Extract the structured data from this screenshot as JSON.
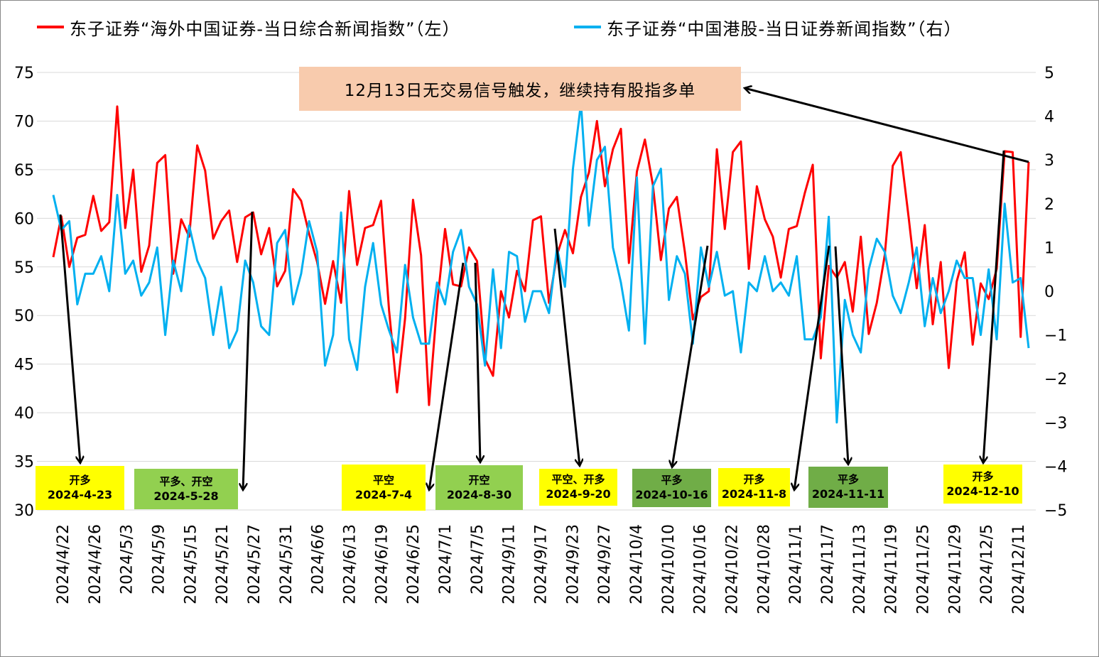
{
  "legend": {
    "left_label": "东子证券“海外中国证券-当日综合新闻指数”（左）",
    "right_label": "东子证券“中国港股-当日证券新闻指数”（右）"
  },
  "callout": {
    "text": "12月13日无交易信号触发，继续持有股指多单"
  },
  "signals": [
    {
      "action": "开多",
      "date": "2024-4-23",
      "bg": "#ffff00"
    },
    {
      "action": "平多、开空",
      "date": "2024-5-28",
      "bg": "#92d050"
    },
    {
      "action": "平空",
      "date": "2024-7-4",
      "bg": "#ffff00"
    },
    {
      "action": "开空",
      "date": "2024-8-30",
      "bg": "#92d050"
    },
    {
      "action": "平空、开多",
      "date": "2024-9-20",
      "bg": "#ffff00"
    },
    {
      "action": "平多",
      "date": "2024-10-16",
      "bg": "#70ad47"
    },
    {
      "action": "开多",
      "date": "2024-11-8",
      "bg": "#ffff00"
    },
    {
      "action": "平多",
      "date": "2024-11-11",
      "bg": "#70ad47"
    },
    {
      "action": "开多",
      "date": "2024-12-10",
      "bg": "#ffff00"
    }
  ],
  "chart_data": {
    "type": "line",
    "x_tick_labels": [
      "2024/4/22",
      "2024/4/26",
      "2024/5/3",
      "2024/5/9",
      "2024/5/15",
      "2024/5/21",
      "2024/5/27",
      "2024/5/31",
      "2024/6/6",
      "2024/6/13",
      "2024/6/19",
      "2024/6/25",
      "2024/7/1",
      "2024/7/5",
      "2024/9/11",
      "2024/9/17",
      "2024/9/23",
      "2024/9/27",
      "2024/10/4",
      "2024/10/10",
      "2024/10/16",
      "2024/10/22",
      "2024/10/28",
      "2024/11/1",
      "2024/11/7",
      "2024/11/13",
      "2024/11/19",
      "2024/11/25",
      "2024/11/29",
      "2024/12/5",
      "2024/12/11"
    ],
    "left_axis": {
      "min": 30,
      "max": 75,
      "ticks": [
        30,
        35,
        40,
        45,
        50,
        55,
        60,
        65,
        70,
        75
      ]
    },
    "right_axis": {
      "min": -5,
      "max": 5,
      "ticks": [
        -5,
        -4,
        -3,
        -2,
        -1,
        0,
        1,
        2,
        3,
        4,
        5
      ]
    },
    "series": [
      {
        "name": "东子证券“海外中国证券-当日综合新闻指数”（左）",
        "axis": "left",
        "color": "#ff0000",
        "values": [
          56.0,
          60.2,
          55.0,
          58.0,
          58.3,
          62.3,
          58.7,
          59.6,
          71.5,
          59.0,
          65.0,
          54.5,
          57.2,
          65.7,
          66.5,
          54.3,
          59.9,
          58.1,
          67.5,
          64.9,
          57.9,
          59.7,
          60.8,
          55.5,
          60.1,
          60.6,
          56.3,
          59.0,
          53.0,
          54.6,
          63.0,
          61.8,
          58.4,
          55.5,
          51.2,
          55.6,
          51.3,
          62.8,
          55.2,
          59.0,
          59.3,
          61.8,
          50.5,
          42.1,
          49.7,
          61.9,
          56.2,
          40.8,
          51.1,
          58.9,
          53.2,
          53.0,
          57.0,
          55.6,
          45.5,
          43.8,
          52.5,
          49.8,
          54.6,
          52.5,
          59.8,
          60.2,
          51.3,
          56.2,
          58.8,
          56.4,
          62.2,
          64.7,
          70.0,
          63.3,
          67.1,
          69.2,
          55.4,
          64.8,
          68.1,
          63.4,
          55.7,
          61.0,
          62.2,
          56.5,
          49.6,
          51.9,
          52.5,
          67.1,
          58.9,
          66.8,
          67.9,
          54.8,
          63.3,
          59.9,
          58.1,
          53.9,
          58.9,
          59.2,
          62.6,
          65.5,
          45.6,
          55.1,
          53.9,
          55.5,
          50.4,
          58.1,
          48.1,
          51.3,
          56.2,
          65.4,
          66.8,
          60.0,
          52.8,
          59.3,
          49.1,
          55.5,
          44.6,
          53.5,
          56.5,
          47.0,
          53.3,
          51.7,
          54.8,
          66.9,
          66.8,
          47.8,
          65.8
        ]
      },
      {
        "name": "东子证券“中国港股-当日证券新闻指数”（右）",
        "axis": "right",
        "color": "#00b0f0",
        "values": [
          2.2,
          1.4,
          1.6,
          -0.3,
          0.4,
          0.4,
          0.8,
          0.0,
          2.2,
          0.4,
          0.7,
          -0.1,
          0.2,
          1.0,
          -1.0,
          0.7,
          0.0,
          1.5,
          0.7,
          0.3,
          -1.0,
          0.1,
          -1.3,
          -0.9,
          0.7,
          0.2,
          -0.8,
          -1.0,
          1.1,
          1.4,
          -0.3,
          0.4,
          1.6,
          0.9,
          -1.7,
          -1.0,
          1.8,
          -1.1,
          -1.8,
          0.1,
          1.1,
          -0.3,
          -0.9,
          -1.4,
          0.6,
          -0.6,
          -1.2,
          -1.2,
          0.2,
          -0.3,
          0.9,
          1.4,
          0.1,
          -0.3,
          -1.7,
          0.5,
          -1.3,
          0.9,
          0.8,
          -0.7,
          0.0,
          0.0,
          -0.5,
          1.0,
          0.1,
          2.8,
          4.3,
          1.5,
          3.0,
          3.3,
          1.0,
          0.2,
          -0.9,
          2.6,
          -1.2,
          2.4,
          2.8,
          -0.2,
          0.8,
          0.4,
          -1.2,
          1.0,
          0.1,
          0.9,
          -0.1,
          0.0,
          -1.4,
          0.2,
          0.0,
          0.8,
          0.0,
          0.2,
          -0.1,
          0.8,
          -1.1,
          -1.1,
          -0.6,
          1.7,
          -3.0,
          -0.2,
          -1.0,
          -1.4,
          0.5,
          1.2,
          0.9,
          -0.1,
          -0.5,
          0.2,
          1.0,
          -0.8,
          0.3,
          -0.5,
          0.0,
          0.7,
          0.3,
          0.3,
          -1.0,
          0.5,
          -1.1,
          2.0,
          0.2,
          0.3,
          -1.3
        ]
      }
    ]
  }
}
